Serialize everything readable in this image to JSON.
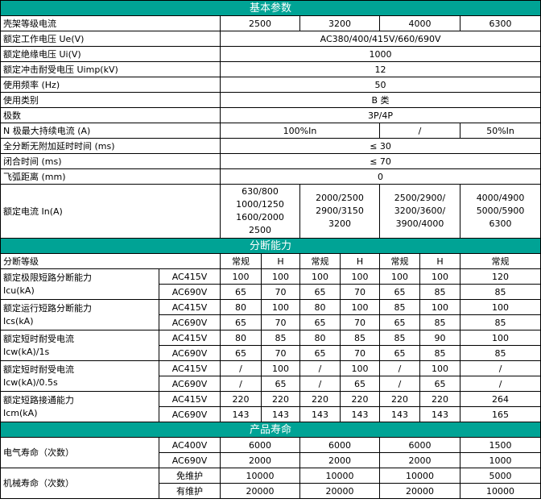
{
  "accent_color": "#00a395",
  "basic": {
    "title": "基本参数",
    "rows": [
      {
        "label": "壳架等级电流",
        "values": [
          "2500",
          "3200",
          "4000",
          "6300"
        ]
      },
      {
        "label": "额定工作电压 Ue(V)",
        "values": [
          "AC380/400/415V/660/690V"
        ]
      },
      {
        "label": "额定绝缘电压 Ui(V)",
        "values": [
          "1000"
        ]
      },
      {
        "label": "额定冲击耐受电压 Uimp(kV)",
        "values": [
          "12"
        ]
      },
      {
        "label": "使用频率 (Hz)",
        "values": [
          "50"
        ]
      },
      {
        "label": "使用类别",
        "values": [
          "B 类"
        ]
      },
      {
        "label": "极数",
        "values": [
          "3P/4P"
        ]
      },
      {
        "label": "N 极最大持续电流 (A)",
        "values": [
          "100%In",
          "/",
          "50%In"
        ]
      },
      {
        "label": "全分断无附加延时时间 (ms)",
        "values": [
          "≤ 30"
        ]
      },
      {
        "label": "闭合时间 (ms)",
        "values": [
          "≤ 70"
        ]
      },
      {
        "label": "飞弧距离 (mm)",
        "values": [
          "0"
        ]
      },
      {
        "label": "额定电流 In(A)",
        "values": [
          "630/800\n1000/1250\n1600/2000\n2500",
          "2000/2500\n2900/3150\n3200",
          "2500/2900/\n3200/3600/\n3900/4000",
          "4000/4900\n5000/5900\n6300"
        ]
      }
    ]
  },
  "breaking": {
    "title": "分断能力",
    "grade_label": "分断等级",
    "grades": [
      "常规",
      "H",
      "常规",
      "H",
      "常规",
      "H",
      "常规"
    ],
    "groups": [
      {
        "label": "额定极限短路分断能力\nIcu(kA)",
        "rows": [
          {
            "voltage": "AC415V",
            "values": [
              "100",
              "100",
              "100",
              "100",
              "100",
              "100",
              "120"
            ]
          },
          {
            "voltage": "AC690V",
            "values": [
              "65",
              "70",
              "65",
              "70",
              "65",
              "85",
              "85"
            ]
          }
        ]
      },
      {
        "label": "额定运行短路分断能力\nIcs(kA)",
        "rows": [
          {
            "voltage": "AC415V",
            "values": [
              "80",
              "100",
              "80",
              "100",
              "85",
              "100",
              "100"
            ]
          },
          {
            "voltage": "AC690V",
            "values": [
              "65",
              "70",
              "65",
              "70",
              "65",
              "85",
              "85"
            ]
          }
        ]
      },
      {
        "label": "额定短时耐受电流\nIcw(kA)/1s",
        "rows": [
          {
            "voltage": "AC415V",
            "values": [
              "80",
              "85",
              "80",
              "85",
              "85",
              "90",
              "100"
            ]
          },
          {
            "voltage": "AC690V",
            "values": [
              "65",
              "70",
              "65",
              "70",
              "65",
              "85",
              "85"
            ]
          }
        ]
      },
      {
        "label": "额定短时耐受电流\nIcw(kA)/0.5s",
        "rows": [
          {
            "voltage": "AC415V",
            "values": [
              "/",
              "100",
              "/",
              "100",
              "/",
              "100",
              "/"
            ]
          },
          {
            "voltage": "AC690V",
            "values": [
              "/",
              "65",
              "/",
              "65",
              "/",
              "65",
              "/"
            ]
          }
        ]
      },
      {
        "label": "额定短路接通能力\nIcm(kA)",
        "rows": [
          {
            "voltage": "AC415V",
            "values": [
              "220",
              "220",
              "220",
              "220",
              "220",
              "220",
              "264"
            ]
          },
          {
            "voltage": "AC690V",
            "values": [
              "143",
              "143",
              "143",
              "143",
              "143",
              "143",
              "165"
            ]
          }
        ]
      }
    ]
  },
  "life": {
    "title": "产品寿命",
    "groups": [
      {
        "label": "电气寿命（次数）",
        "rows": [
          {
            "condition": "AC400V",
            "values": [
              "6000",
              "6000",
              "6000",
              "1500"
            ]
          },
          {
            "condition": "AC690V",
            "values": [
              "2000",
              "2000",
              "2000",
              "1000"
            ]
          }
        ]
      },
      {
        "label": "机械寿命（次数）",
        "rows": [
          {
            "condition": "免维护",
            "values": [
              "10000",
              "10000",
              "10000",
              "5000"
            ]
          },
          {
            "condition": "有维护",
            "values": [
              "20000",
              "20000",
              "20000",
              "10000"
            ]
          }
        ]
      }
    ]
  }
}
